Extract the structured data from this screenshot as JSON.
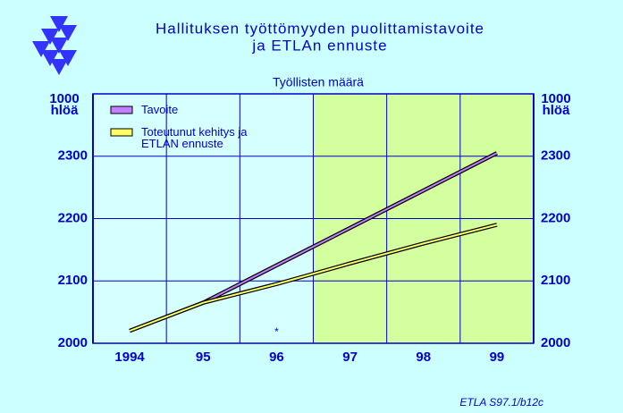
{
  "chart_data": {
    "type": "line",
    "title": "Hallituksen  työttömyyden  puolittamistavoite",
    "title_line2": "ja  ETLAn  ennuste",
    "subtitle": "Työllisten määrä",
    "y_unit": "1000 hlöä",
    "categories": [
      "1994",
      "95",
      "96",
      "97",
      "98",
      "99"
    ],
    "series": [
      {
        "name": "Tavoite",
        "color": "#c080ff",
        "values": [
          2020,
          2065,
          2125,
          2185,
          2245,
          2305
        ]
      },
      {
        "name": "Toteutunut kehitys ja ETLAN ennuste",
        "color": "#ffff66",
        "values": [
          2020,
          2065,
          2095,
          2128,
          2160,
          2190
        ]
      }
    ],
    "ylim": [
      2000,
      2400
    ],
    "yticks": [
      2000,
      2100,
      2200,
      2300
    ],
    "forecast_from": "97",
    "annotation": "*",
    "source": "ETLA S97.1/b12c"
  }
}
